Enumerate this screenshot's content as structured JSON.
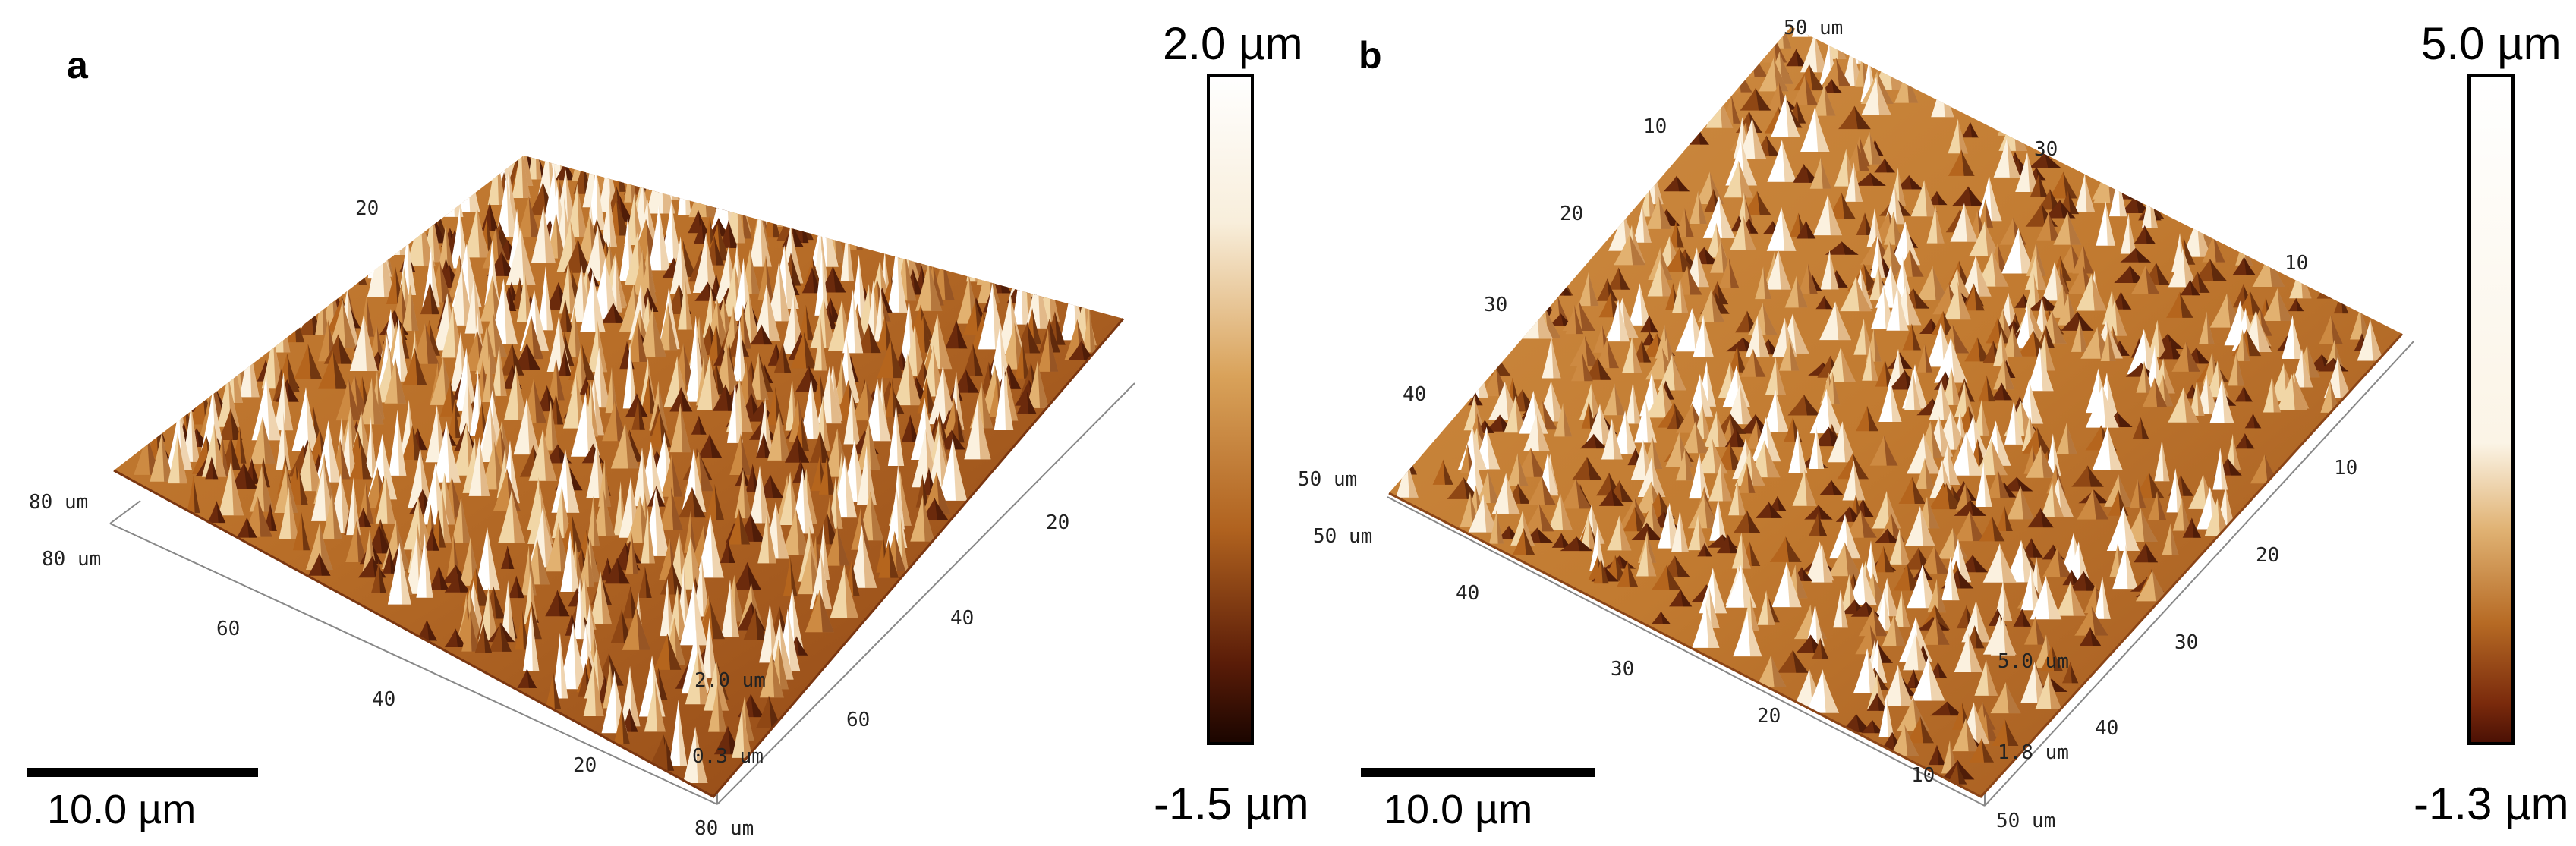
{
  "panels": [
    {
      "letter": "a",
      "corner_labels": {
        "left": "80 um",
        "front_left": "80 um",
        "front_right": "80 um"
      },
      "left_ticks": [
        "60",
        "40",
        "20"
      ],
      "right_ticks": [
        "20",
        "40",
        "60"
      ],
      "back_ticks": [
        "20"
      ],
      "z_labels": {
        "top": "2.0 um",
        "bottom": "0.3 um"
      },
      "colorbar": {
        "max": "2.0 µm",
        "min": "-1.5 µm"
      },
      "scale_bar": "10.0 µm"
    },
    {
      "letter": "b",
      "corner_labels": {
        "top": "50 um",
        "left": "50 um",
        "left2": "50 um",
        "front_right": "50 um"
      },
      "left_ticks": [
        "40",
        "30",
        "20",
        "10"
      ],
      "right_ticks": [
        "10",
        "20",
        "30",
        "40"
      ],
      "back_left_ticks": [
        "10",
        "20",
        "30",
        "40"
      ],
      "back_right_ticks": [
        "30",
        "10"
      ],
      "z_labels": {
        "top": "5.0 um",
        "bottom": "1.8 um"
      },
      "colorbar": {
        "max": "5.0 µm",
        "min": "-1.3 µm"
      },
      "scale_bar": "10.0 µm"
    }
  ],
  "colors": {
    "afm_dark": "#3a1206",
    "afm_mid": "#b5651d",
    "afm_light": "#e6b77a",
    "afm_white": "#ffffff"
  }
}
